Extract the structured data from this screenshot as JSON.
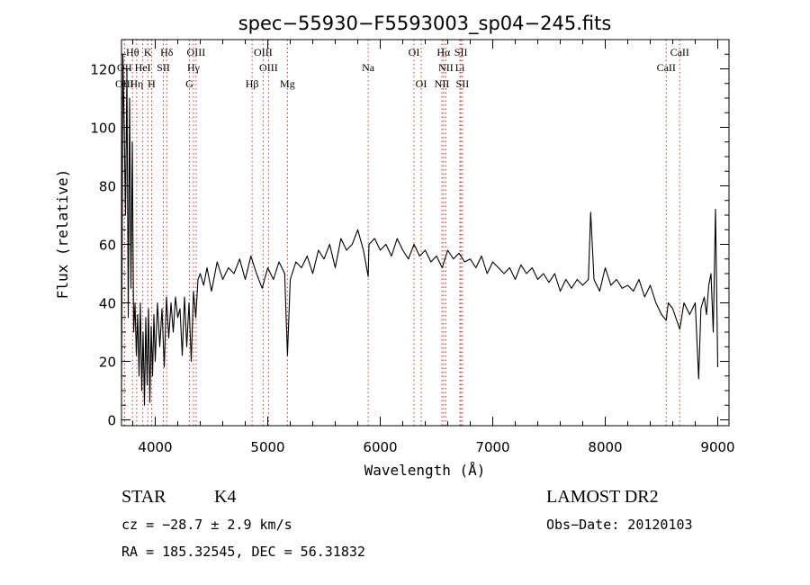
{
  "chart_data": {
    "type": "line",
    "title": "spec−55930−F5593003_sp04−245.fits",
    "xlabel": "Wavelength (Å)",
    "ylabel": "Flux (relative)",
    "xlim": [
      3700,
      9100
    ],
    "ylim": [
      -2,
      130
    ],
    "xticks": [
      4000,
      5000,
      6000,
      7000,
      8000,
      9000
    ],
    "yticks": [
      0,
      20,
      40,
      60,
      80,
      100,
      120
    ],
    "grid": false,
    "line_color": "#000000",
    "marker_color": "#cc3333",
    "lines": [
      {
        "label": "Hθ",
        "wave": 3798,
        "row": 1
      },
      {
        "label": "K",
        "wave": 3934,
        "row": 1
      },
      {
        "label": "Hδ",
        "wave": 4102,
        "row": 1
      },
      {
        "label": "OIII",
        "wave": 4363,
        "row": 1
      },
      {
        "label": "OIII",
        "wave": 4959,
        "row": 1
      },
      {
        "label": "OI",
        "wave": 6300,
        "row": 1
      },
      {
        "label": "Hα",
        "wave": 6563,
        "row": 1
      },
      {
        "label": "SII",
        "wave": 6717,
        "row": 1
      },
      {
        "label": "CaII",
        "wave": 8662,
        "row": 1
      },
      {
        "label": "OII",
        "wave": 3727,
        "row": 2
      },
      {
        "label": "HeI",
        "wave": 3889,
        "row": 2
      },
      {
        "label": "SII",
        "wave": 4072,
        "row": 2
      },
      {
        "label": "Hγ",
        "wave": 4340,
        "row": 2
      },
      {
        "label": "OIII",
        "wave": 5007,
        "row": 2
      },
      {
        "label": "Na",
        "wave": 5893,
        "row": 2
      },
      {
        "label": "NII",
        "wave": 6583,
        "row": 2
      },
      {
        "label": "Li",
        "wave": 6708,
        "row": 2
      },
      {
        "label": "CaII",
        "wave": 8542,
        "row": 2
      },
      {
        "label": "OIII",
        "wave": 3727,
        "row": 3
      },
      {
        "label": "Hη",
        "wave": 3835,
        "row": 3
      },
      {
        "label": "H",
        "wave": 3968,
        "row": 3
      },
      {
        "label": "G",
        "wave": 4304,
        "row": 3
      },
      {
        "label": "Hβ",
        "wave": 4861,
        "row": 3
      },
      {
        "label": "Mg",
        "wave": 5175,
        "row": 3
      },
      {
        "label": "OI",
        "wave": 6364,
        "row": 3
      },
      {
        "label": "NII",
        "wave": 6548,
        "row": 3
      },
      {
        "label": "SII",
        "wave": 6731,
        "row": 3
      }
    ],
    "series": [
      {
        "x": [
          3700,
          3712,
          3724,
          3736,
          3748,
          3760,
          3772,
          3784,
          3796,
          3808,
          3820,
          3832,
          3844,
          3856,
          3868,
          3880,
          3892,
          3904,
          3916,
          3928,
          3940,
          3952,
          3964,
          3976,
          3988,
          4000,
          4020,
          4040,
          4060,
          4080,
          4100,
          4120,
          4140,
          4160,
          4180,
          4200,
          4220,
          4240,
          4260,
          4280,
          4300,
          4320,
          4340,
          4360,
          4380,
          4400,
          4430,
          4460,
          4500,
          4550,
          4600,
          4650,
          4700,
          4750,
          4800,
          4850,
          4900,
          4950,
          5000,
          5050,
          5100,
          5150,
          5175,
          5200,
          5250,
          5300,
          5350,
          5400,
          5450,
          5500,
          5550,
          5600,
          5650,
          5700,
          5750,
          5800,
          5850,
          5893,
          5900,
          5950,
          6000,
          6050,
          6100,
          6150,
          6200,
          6250,
          6300,
          6350,
          6400,
          6450,
          6500,
          6550,
          6600,
          6650,
          6700,
          6750,
          6800,
          6850,
          6900,
          6950,
          7000,
          7050,
          7100,
          7150,
          7200,
          7250,
          7300,
          7350,
          7400,
          7450,
          7500,
          7550,
          7600,
          7650,
          7700,
          7750,
          7800,
          7850,
          7870,
          7900,
          7950,
          8000,
          8050,
          8100,
          8150,
          8200,
          8250,
          8300,
          8350,
          8400,
          8450,
          8500,
          8542,
          8560,
          8600,
          8662,
          8700,
          8750,
          8800,
          8830,
          8850,
          8880,
          8900,
          8920,
          8940,
          8960,
          8980,
          9000
        ],
        "y": [
          5,
          125,
          100,
          70,
          120,
          35,
          110,
          45,
          95,
          30,
          40,
          22,
          36,
          15,
          40,
          10,
          30,
          5,
          35,
          12,
          38,
          6,
          32,
          15,
          36,
          20,
          40,
          25,
          38,
          18,
          42,
          28,
          40,
          30,
          42,
          35,
          38,
          22,
          42,
          25,
          40,
          20,
          44,
          35,
          48,
          50,
          46,
          52,
          44,
          54,
          48,
          52,
          50,
          55,
          48,
          56,
          50,
          45,
          52,
          48,
          54,
          50,
          22,
          48,
          54,
          52,
          56,
          50,
          58,
          55,
          60,
          52,
          62,
          58,
          60,
          65,
          58,
          49,
          60,
          62,
          58,
          60,
          56,
          62,
          58,
          55,
          60,
          56,
          58,
          54,
          56,
          52,
          58,
          55,
          57,
          54,
          55,
          52,
          56,
          50,
          54,
          52,
          50,
          52,
          48,
          53,
          50,
          52,
          48,
          50,
          47,
          50,
          44,
          48,
          45,
          48,
          46,
          48,
          71,
          48,
          44,
          52,
          46,
          48,
          45,
          46,
          44,
          48,
          42,
          46,
          40,
          36,
          34,
          40,
          38,
          31,
          40,
          36,
          40,
          14,
          38,
          42,
          36,
          46,
          50,
          30,
          72,
          18
        ]
      }
    ],
    "info": {
      "class_label": "STAR",
      "subclass_label": "K4",
      "survey": "LAMOST DR2",
      "cz": "cz = −28.7 ± 2.9 km/s",
      "obs_date": "Obs−Date: 20120103",
      "coords": "RA = 185.32545, DEC =  56.31832"
    }
  }
}
